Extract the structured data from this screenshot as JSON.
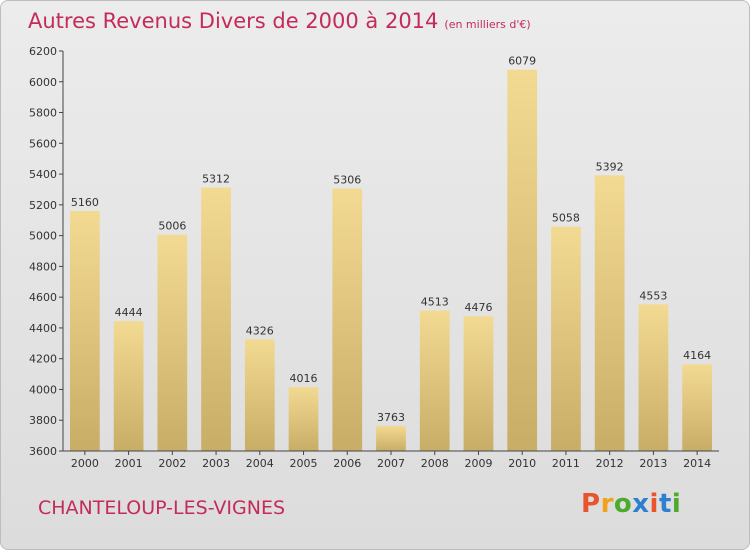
{
  "title": "Autres Revenus Divers de 2000 à 2014",
  "subtitle": "(en milliers d'€)",
  "commune": "CHANTELOUP-LES-VIGNES",
  "logo": {
    "text": "Proxiti",
    "colors": [
      "#e8552d",
      "#f2a11b",
      "#4caa2c",
      "#2f7fd0",
      "#e8552d",
      "#2f7fd0",
      "#4caa2c"
    ]
  },
  "colors": {
    "title": "#c42b5a",
    "bar_top": "#f3da92",
    "bar_bottom": "#c8ad66"
  },
  "chart_data": {
    "type": "bar",
    "categories": [
      "2000",
      "2001",
      "2002",
      "2003",
      "2004",
      "2005",
      "2006",
      "2007",
      "2008",
      "2009",
      "2010",
      "2011",
      "2012",
      "2013",
      "2014"
    ],
    "values": [
      5160,
      4444,
      5006,
      5312,
      4326,
      4016,
      5306,
      3763,
      4513,
      4476,
      6079,
      5058,
      5392,
      4553,
      4164
    ],
    "ylim": [
      3600,
      6200
    ],
    "yticks": [
      3600,
      3800,
      4000,
      4200,
      4400,
      4600,
      4800,
      5000,
      5200,
      5400,
      5600,
      5800,
      6000,
      6200
    ],
    "grid": false,
    "xlabel": "",
    "ylabel": ""
  }
}
